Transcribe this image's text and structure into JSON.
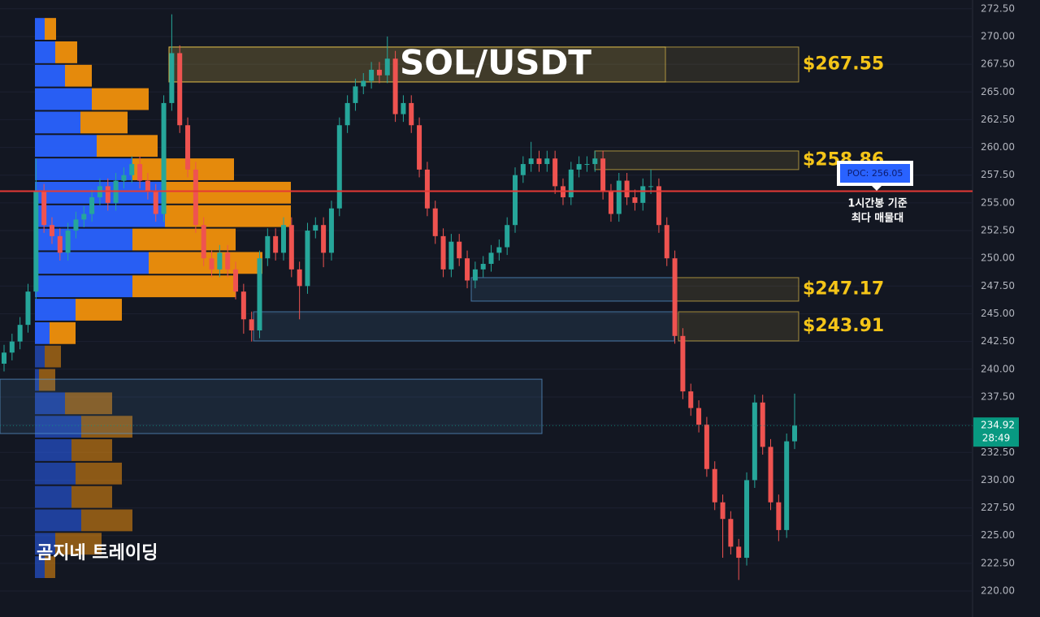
{
  "chart_data": {
    "type": "candlestick",
    "title": "SOL/USDT",
    "open": [
      240.5,
      241.5,
      242.5,
      244,
      247,
      256,
      253,
      252,
      250.5,
      252.5,
      253.5,
      254,
      255.5,
      256.5,
      255,
      257,
      257.5,
      258.5,
      257,
      256,
      254,
      264,
      268.5,
      262,
      258,
      253,
      250,
      249,
      250.5,
      249,
      247,
      244.5,
      243.5,
      250,
      252,
      250.5,
      253,
      249,
      247.5,
      252.5,
      253,
      250.5,
      254.5,
      262,
      264,
      265.5,
      266,
      267,
      266.5,
      268,
      263,
      264,
      262,
      258,
      254.5,
      252,
      249,
      251.5,
      250,
      248,
      249,
      249.5,
      250.5,
      251,
      253,
      257.5,
      258.5,
      259,
      258.5,
      259,
      256.5,
      255.5,
      258,
      258.5,
      258.5,
      259,
      256,
      254,
      257,
      255.5,
      255,
      256.5,
      256.5,
      253,
      250,
      243,
      238,
      236.5,
      235,
      231,
      228,
      226.5,
      224,
      223,
      230,
      237,
      233,
      228,
      225.5,
      233.5
    ],
    "high": [
      242.2,
      243.2,
      244.7,
      247.7,
      259,
      256.7,
      253.7,
      252.7,
      253.2,
      254.2,
      254.7,
      256.2,
      257.2,
      257.2,
      257.7,
      258.2,
      259.2,
      259.2,
      257.7,
      256.7,
      264.7,
      272,
      269.2,
      262.7,
      258.7,
      253.7,
      250.7,
      251.2,
      251.2,
      249.7,
      247.7,
      245.2,
      250.7,
      252.7,
      252.7,
      253.7,
      253.7,
      249.7,
      253.2,
      253.7,
      253.7,
      255.2,
      262.7,
      264.7,
      266.2,
      266.7,
      267.7,
      267.7,
      270,
      268.7,
      264.7,
      264.7,
      262.7,
      258.7,
      255.2,
      252.7,
      252.2,
      252.2,
      250.7,
      249.7,
      250.2,
      251.2,
      251.7,
      253.7,
      258.2,
      259.2,
      260.5,
      259.7,
      259.7,
      259.7,
      257.2,
      258.7,
      259.2,
      259.2,
      259.7,
      259.7,
      256.7,
      257.7,
      257.7,
      256.2,
      257.2,
      258,
      257.2,
      253.7,
      250.7,
      243.7,
      238.7,
      237.2,
      235.7,
      231.7,
      228.7,
      227.2,
      224.7,
      230.7,
      237.7,
      237.7,
      233.7,
      228.7,
      234.2,
      237.8
    ],
    "low": [
      239.8,
      240.8,
      241.8,
      243.3,
      246.3,
      252.3,
      251.3,
      249.8,
      249.8,
      251.8,
      252.8,
      253.3,
      254.8,
      254.3,
      254.3,
      256.3,
      256.8,
      256.3,
      255.3,
      253.3,
      253.3,
      263.3,
      261.3,
      257.3,
      252.3,
      249.3,
      248.3,
      248.3,
      248.3,
      246.3,
      243.2,
      242.5,
      242.8,
      249.3,
      249.8,
      249.8,
      248.3,
      244.5,
      246.8,
      251.8,
      249.2,
      249.8,
      253.8,
      261.3,
      263.3,
      264.8,
      265.3,
      265.8,
      265.8,
      262.3,
      262.3,
      261.3,
      257.3,
      253.8,
      251.3,
      248.3,
      248.3,
      249.3,
      247.3,
      247.3,
      248.3,
      248.8,
      249.8,
      250.3,
      252.3,
      256.8,
      257.8,
      257.8,
      257.8,
      255.8,
      254.8,
      254.8,
      257.3,
      257.8,
      257.8,
      255.3,
      253.3,
      253.3,
      254.8,
      254.3,
      254.3,
      255.8,
      252.3,
      249.3,
      242.3,
      237.3,
      235.8,
      234.3,
      230.3,
      227.3,
      223,
      223.3,
      221,
      222.3,
      229.3,
      232.3,
      227.3,
      224.5,
      224.8,
      232.8
    ],
    "close": [
      241.5,
      242.5,
      244,
      247,
      256,
      253,
      252,
      250.5,
      252.5,
      253.5,
      254,
      255.5,
      256.5,
      255,
      257,
      257.5,
      258.5,
      257,
      256,
      254,
      264,
      268.5,
      262,
      258,
      253,
      250,
      249,
      250.5,
      249,
      247,
      244.5,
      243.5,
      250,
      252,
      250.5,
      253,
      249,
      247.5,
      252.5,
      253,
      250.5,
      254.5,
      262,
      264,
      265.5,
      266,
      267,
      266.5,
      268,
      263,
      264,
      262,
      258,
      254.5,
      252,
      249,
      251.5,
      250,
      248,
      249,
      249.5,
      250.5,
      251,
      253,
      257.5,
      258.5,
      259,
      258.5,
      259,
      256.5,
      255.5,
      258,
      258.5,
      258.5,
      259,
      256,
      254,
      257,
      255.5,
      255,
      256.5,
      256.5,
      253,
      250,
      243,
      238,
      236.5,
      235,
      231,
      228,
      226.5,
      224,
      223,
      230,
      237,
      233,
      228,
      225.5,
      233.5,
      234.92
    ],
    "up_color": "#26a69a",
    "down_color": "#ef5350",
    "ylim": [
      217.66,
      273.29
    ],
    "yticks": [
      {
        "value": 220,
        "label": "220.00"
      },
      {
        "value": 222.5,
        "label": "222.50"
      },
      {
        "value": 225,
        "label": "225.00"
      },
      {
        "value": 227.5,
        "label": "227.50"
      },
      {
        "value": 230,
        "label": "230.00"
      },
      {
        "value": 232.5,
        "label": "232.50"
      },
      {
        "value": 235,
        "label": "235.00"
      },
      {
        "value": 237.5,
        "label": "237.50"
      },
      {
        "value": 240,
        "label": "240.00"
      },
      {
        "value": 242.5,
        "label": "242.50"
      },
      {
        "value": 245,
        "label": "245.00"
      },
      {
        "value": 247.5,
        "label": "247.50"
      },
      {
        "value": 250,
        "label": "250.00"
      },
      {
        "value": 252.5,
        "label": "252.50"
      },
      {
        "value": 255,
        "label": "255.00"
      },
      {
        "value": 257.5,
        "label": "257.50"
      },
      {
        "value": 260,
        "label": "260.00"
      },
      {
        "value": 262.5,
        "label": "262.50"
      },
      {
        "value": 265,
        "label": "265.00"
      },
      {
        "value": 267.5,
        "label": "267.50"
      },
      {
        "value": 270,
        "label": "270.00"
      },
      {
        "value": 272.5,
        "label": "272.50"
      }
    ],
    "grid": true,
    "poc": {
      "value": 256.05,
      "label": "POC: 256.05",
      "note": [
        "1시간봉 기준",
        "최다 매물대"
      ],
      "color": "#e53935"
    },
    "last_price": {
      "value": 234.92,
      "label": "234.92",
      "countdown": "28:49",
      "color": "#089981"
    },
    "zones": [
      {
        "label": "$267.55",
        "top": 269.05,
        "bottom": 265.9
      },
      {
        "label": "$258.86",
        "top": 259.68,
        "bottom": 258.0
      },
      {
        "label": "$247.17",
        "top": 248.26,
        "bottom": 246.14
      },
      {
        "label": "$243.91",
        "top": 245.18,
        "bottom": 242.55
      }
    ],
    "zone_color": "#ffd54f",
    "support_zones": [
      {
        "top": 248.26,
        "bottom": 246.14
      },
      {
        "top": 245.18,
        "bottom": 242.55
      },
      {
        "top": 239.1,
        "bottom": 234.2
      }
    ],
    "support_color": "#5b9bd5",
    "volume_profile": {
      "bins": [
        221.1,
        223.21,
        225.32,
        227.43,
        229.54,
        231.65,
        233.76,
        235.87,
        237.98,
        240.09,
        242.2,
        244.31,
        246.42,
        248.53,
        250.64,
        252.75,
        254.86,
        256.97,
        259.08,
        261.19,
        263.3,
        265.41,
        267.52,
        269.63,
        271.74
      ],
      "buy": [
        12,
        25,
        57,
        45,
        50,
        45,
        57,
        37,
        5,
        12,
        18,
        50,
        120,
        140,
        120,
        160,
        160,
        120,
        76,
        56,
        70,
        37,
        25,
        12
      ],
      "sell": [
        13,
        57,
        63,
        50,
        57,
        50,
        63,
        58,
        20,
        20,
        32,
        57,
        127,
        140,
        127,
        155,
        155,
        125,
        75,
        58,
        70,
        33,
        27,
        14
      ],
      "buy_color": "#2962ff",
      "sell_color": "#f0900c"
    }
  },
  "watermark": "곰지네 트레이딩"
}
